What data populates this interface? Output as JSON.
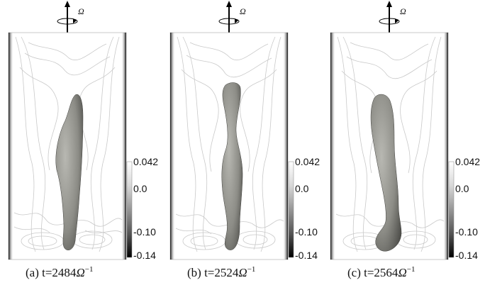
{
  "panels": [
    {
      "caption_prefix": "(a) t=2484",
      "caption_omega": "Ω",
      "caption_exp": "−1",
      "omega_label": "Ω",
      "colorbar": {
        "max": "0.042",
        "zero": "0.0",
        "mid": "-0.10",
        "min": "-0.14"
      }
    },
    {
      "caption_prefix": "(b) t=2524",
      "caption_omega": "Ω",
      "caption_exp": "−1",
      "omega_label": "Ω",
      "colorbar": {
        "max": "0.042",
        "zero": "0.0",
        "mid": "-0.10",
        "min": "-0.14"
      }
    },
    {
      "caption_prefix": "(c) t=2564",
      "caption_omega": "Ω",
      "caption_exp": "−1",
      "omega_label": "Ω",
      "colorbar": {
        "max": "0.042",
        "zero": "0.0",
        "mid": "-0.10",
        "min": "-0.14"
      }
    }
  ],
  "colors": {
    "contour": "#c9c9c9",
    "vortex": "#8a8a85",
    "wall": "#2a2a2a"
  }
}
